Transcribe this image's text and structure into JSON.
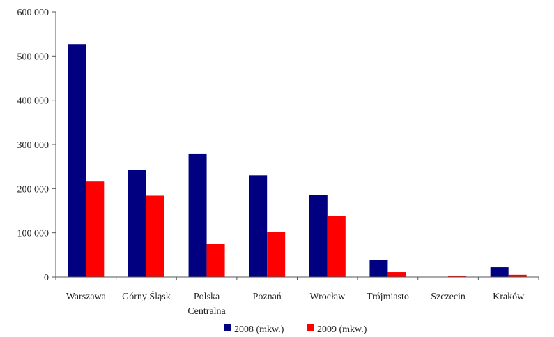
{
  "chart_data": {
    "type": "bar",
    "categories": [
      [
        "Warszawa"
      ],
      [
        "Górny Śląsk"
      ],
      [
        "Polska",
        "Centralna"
      ],
      [
        "Poznań"
      ],
      [
        "Wrocław"
      ],
      [
        "Trójmiasto"
      ],
      [
        "Szczecin"
      ],
      [
        "Kraków"
      ]
    ],
    "series": [
      {
        "name": "2008 (mkw.)",
        "color": "#000080",
        "values": [
          527000,
          243000,
          278000,
          230000,
          185000,
          38000,
          0,
          22000
        ]
      },
      {
        "name": "2009 (mkw.)",
        "color": "#ff0000",
        "values": [
          216000,
          184000,
          75000,
          102000,
          138000,
          11000,
          3000,
          5000
        ]
      }
    ],
    "ylim": [
      0,
      600000
    ],
    "yticks": [
      0,
      100000,
      200000,
      300000,
      400000,
      500000,
      600000
    ],
    "ytick_labels": [
      "0",
      "100 000",
      "200 000",
      "300 000",
      "400 000",
      "500 000",
      "600 000"
    ],
    "grid": false,
    "legend_position": "bottom"
  }
}
